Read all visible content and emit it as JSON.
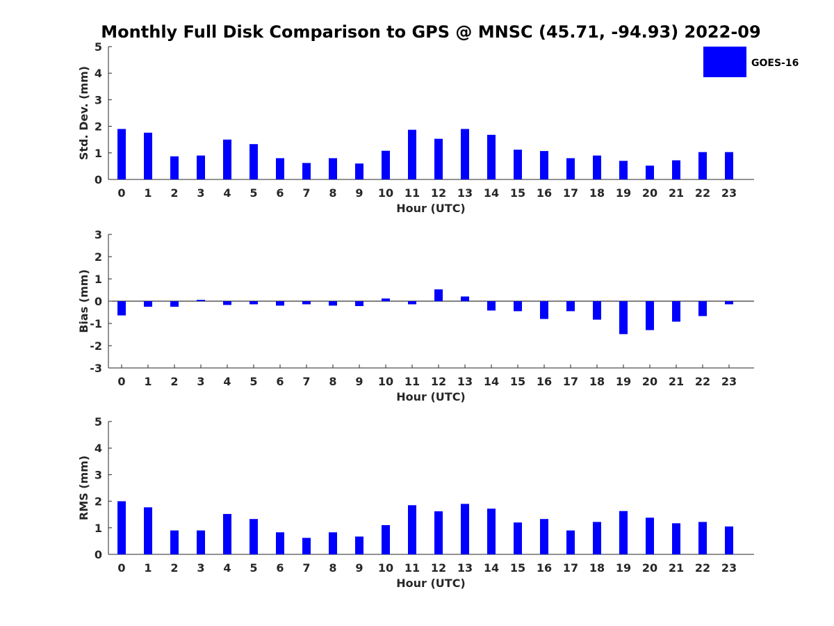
{
  "chart_data": [
    {
      "type": "bar",
      "title": "Monthly Full Disk Comparison to GPS @ MNSC (45.71, -94.93) 2022-09",
      "xlabel": "Hour (UTC)",
      "ylabel": "Std. Dev. (mm)",
      "ylim": [
        0,
        5
      ],
      "yticks": [
        0,
        1,
        2,
        3,
        4,
        5
      ],
      "categories": [
        "0",
        "1",
        "2",
        "3",
        "4",
        "5",
        "6",
        "7",
        "8",
        "9",
        "10",
        "11",
        "12",
        "13",
        "14",
        "15",
        "16",
        "17",
        "18",
        "19",
        "20",
        "21",
        "22",
        "23"
      ],
      "series": [
        {
          "name": "GOES-16",
          "color": "#0000ff",
          "values": [
            1.9,
            1.76,
            0.87,
            0.9,
            1.5,
            1.33,
            0.8,
            0.62,
            0.8,
            0.6,
            1.08,
            1.87,
            1.53,
            1.9,
            1.68,
            1.12,
            1.07,
            0.8,
            0.9,
            0.7,
            0.52,
            0.72,
            1.03,
            1.03
          ]
        }
      ],
      "legend": "top-right"
    },
    {
      "type": "bar",
      "xlabel": "Hour (UTC)",
      "ylabel": "Bias (mm)",
      "ylim": [
        -3,
        3
      ],
      "yticks": [
        -3,
        -2,
        -1,
        0,
        1,
        2,
        3
      ],
      "categories": [
        "0",
        "1",
        "2",
        "3",
        "4",
        "5",
        "6",
        "7",
        "8",
        "9",
        "10",
        "11",
        "12",
        "13",
        "14",
        "15",
        "16",
        "17",
        "18",
        "19",
        "20",
        "21",
        "22",
        "23"
      ],
      "series": [
        {
          "name": "GOES-16",
          "color": "#0000ff",
          "values": [
            -0.64,
            -0.25,
            -0.25,
            0.06,
            -0.17,
            -0.14,
            -0.2,
            -0.14,
            -0.2,
            -0.22,
            0.12,
            -0.14,
            0.53,
            0.21,
            -0.42,
            -0.45,
            -0.8,
            -0.45,
            -0.83,
            -1.48,
            -1.3,
            -0.92,
            -0.67,
            -0.14
          ]
        }
      ]
    },
    {
      "type": "bar",
      "xlabel": "Hour (UTC)",
      "ylabel": "RMS (mm)",
      "ylim": [
        0,
        5
      ],
      "yticks": [
        0,
        1,
        2,
        3,
        4,
        5
      ],
      "categories": [
        "0",
        "1",
        "2",
        "3",
        "4",
        "5",
        "6",
        "7",
        "8",
        "9",
        "10",
        "11",
        "12",
        "13",
        "14",
        "15",
        "16",
        "17",
        "18",
        "19",
        "20",
        "21",
        "22",
        "23"
      ],
      "series": [
        {
          "name": "GOES-16",
          "color": "#0000ff",
          "values": [
            2.0,
            1.77,
            0.9,
            0.9,
            1.52,
            1.33,
            0.83,
            0.62,
            0.83,
            0.67,
            1.1,
            1.85,
            1.62,
            1.9,
            1.72,
            1.2,
            1.33,
            0.9,
            1.22,
            1.63,
            1.38,
            1.17,
            1.22,
            1.05
          ]
        }
      ]
    }
  ]
}
